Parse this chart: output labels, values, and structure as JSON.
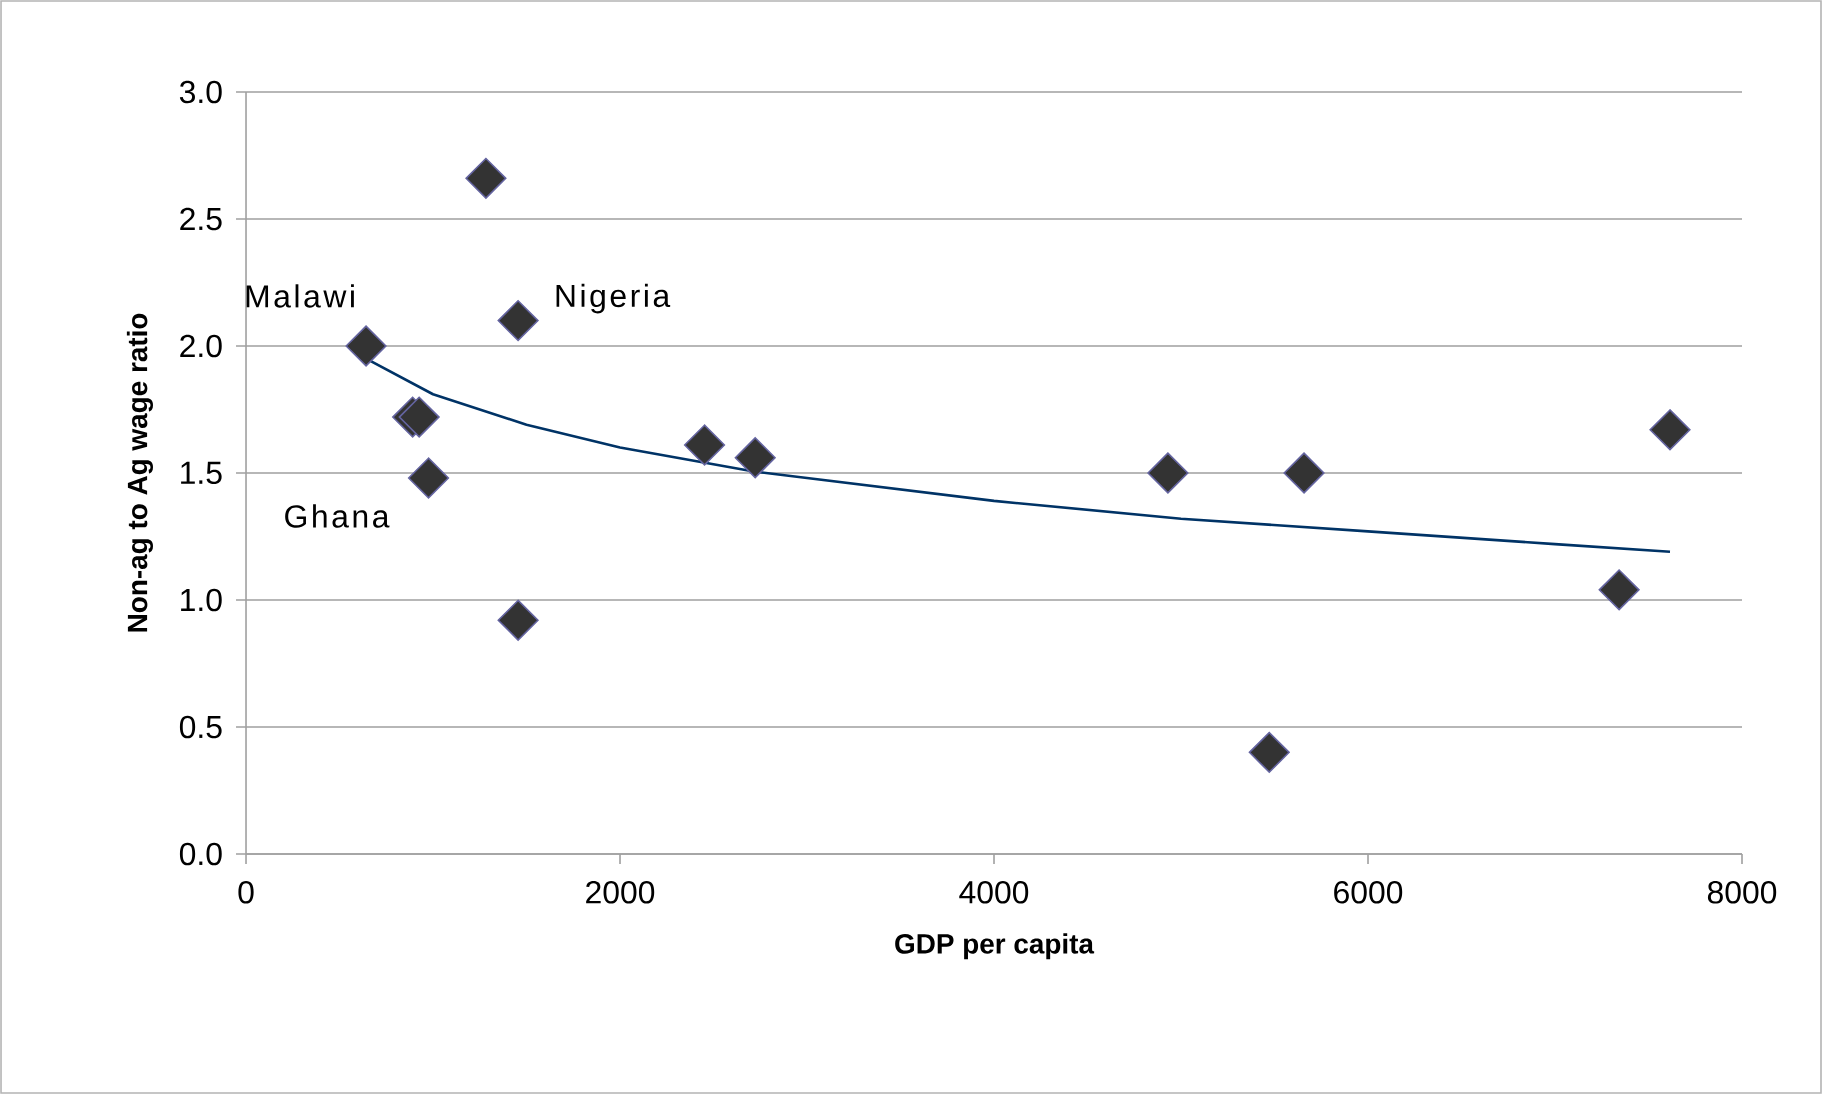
{
  "chart_data": {
    "type": "scatter",
    "xlabel": "GDP per capita",
    "ylabel": "Non-ag to Ag wage ratio",
    "series": [
      {
        "color": "#333333",
        "marker": "diamond",
        "x": [
          642,
          1283,
          1455,
          891,
          926,
          976,
          1455,
          2452,
          2723,
          4930,
          5658,
          5472,
          7343,
          7615
        ],
        "values": [
          2.0,
          2.66,
          2.1,
          1.72,
          1.72,
          1.48,
          0.92,
          1.61,
          1.56,
          1.5,
          1.5,
          0.4,
          1.04,
          1.67
        ]
      },
      {
        "type": "line",
        "color": "#003366",
        "marker": "none",
        "x": [
          642,
          1000,
          1500,
          2000,
          2723,
          3000,
          4000,
          5000,
          6000,
          7000,
          7615
        ],
        "values": [
          1.95,
          1.81,
          1.69,
          1.6,
          1.505,
          1.48,
          1.39,
          1.32,
          1.27,
          1.22,
          1.19
        ]
      }
    ],
    "annotations": [
      {
        "text": "Malawi",
        "x": 642,
        "y": 2.0
      },
      {
        "text": "Nigeria",
        "x": 1455,
        "y": 2.1
      },
      {
        "text": "Ghana",
        "x": 976,
        "y": 1.48
      }
    ],
    "xlim": [
      0,
      8000
    ],
    "xticks": [
      0,
      2000,
      4000,
      6000,
      8000
    ],
    "ylim": [
      0,
      3
    ],
    "yticks": [
      {
        "value": 0,
        "label": "0.0"
      },
      {
        "value": 0.5,
        "label": "0.5"
      },
      {
        "value": 1,
        "label": "1.0"
      },
      {
        "value": 1.5,
        "label": "1.5"
      },
      {
        "value": 2,
        "label": "2.0"
      },
      {
        "value": 2.5,
        "label": "2.5"
      },
      {
        "value": 3,
        "label": "3.0"
      }
    ],
    "grid": "y"
  }
}
